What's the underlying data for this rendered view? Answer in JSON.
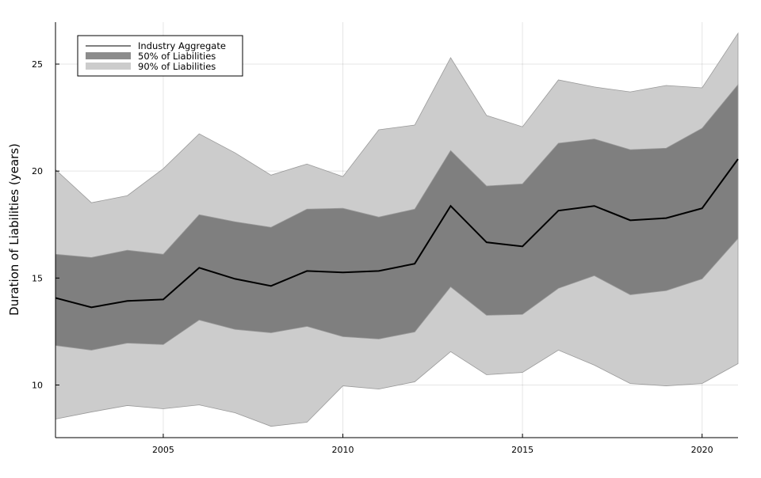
{
  "chart_data": {
    "type": "area",
    "title": "",
    "xlabel": "",
    "ylabel": "Duration of Liabilities (years)",
    "xlim": [
      2002,
      2021
    ],
    "ylim": [
      7.54,
      26.96
    ],
    "xticks": [
      2005,
      2010,
      2015,
      2020
    ],
    "yticks": [
      10,
      15,
      20,
      25
    ],
    "grid": true,
    "legend_position": "top-left",
    "x": [
      2002,
      2003,
      2004,
      2005,
      2006,
      2007,
      2008,
      2009,
      2010,
      2011,
      2012,
      2013,
      2014,
      2015,
      2016,
      2017,
      2018,
      2019,
      2020,
      2021
    ],
    "series": [
      {
        "name": "90% of Liabilities",
        "kind": "band",
        "color": "#cccccc",
        "upper": [
          20.07,
          18.52,
          18.85,
          20.11,
          21.74,
          20.85,
          19.81,
          20.33,
          19.74,
          21.93,
          22.15,
          25.3,
          22.6,
          22.07,
          24.26,
          23.93,
          23.7,
          24.0,
          23.89,
          26.44
        ],
        "lower": [
          8.41,
          8.74,
          9.04,
          8.89,
          9.07,
          8.7,
          8.07,
          8.26,
          9.96,
          9.81,
          10.15,
          11.56,
          10.48,
          10.59,
          11.63,
          10.93,
          10.07,
          9.96,
          10.07,
          11.0
        ]
      },
      {
        "name": "50% of Liabilities",
        "kind": "band",
        "color": "#7f7f7f",
        "upper": [
          16.11,
          15.96,
          16.3,
          16.11,
          17.96,
          17.63,
          17.37,
          18.22,
          18.26,
          17.85,
          18.22,
          20.96,
          19.3,
          19.4,
          21.3,
          21.5,
          21.0,
          21.07,
          22.0,
          24.04
        ],
        "lower": [
          11.85,
          11.63,
          11.96,
          11.89,
          13.04,
          12.6,
          12.44,
          12.74,
          12.26,
          12.15,
          12.48,
          14.59,
          13.26,
          13.3,
          14.52,
          15.11,
          14.22,
          14.41,
          14.96,
          16.85
        ]
      },
      {
        "name": "Industry Aggregate",
        "kind": "line",
        "color": "#000000",
        "values": [
          14.07,
          13.63,
          13.93,
          14.0,
          15.48,
          14.96,
          14.63,
          15.33,
          15.26,
          15.33,
          15.67,
          18.37,
          16.67,
          16.48,
          18.15,
          18.37,
          17.7,
          17.8,
          18.26,
          20.56
        ]
      }
    ]
  }
}
